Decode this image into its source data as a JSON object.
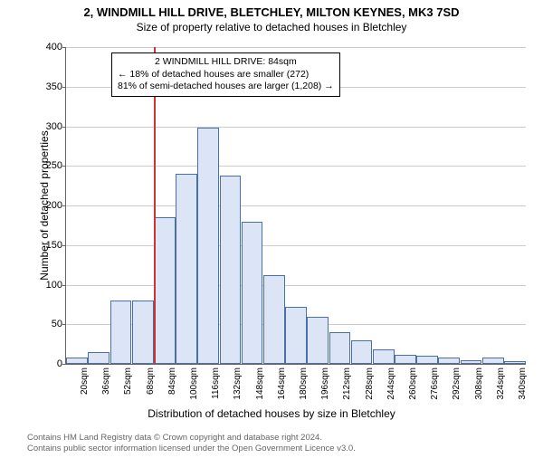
{
  "title": "2, WINDMILL HILL DRIVE, BLETCHLEY, MILTON KEYNES, MK3 7SD",
  "subtitle": "Size of property relative to detached houses in Bletchley",
  "yaxis_label": "Number of detached properties",
  "xaxis_label": "Distribution of detached houses by size in Bletchley",
  "chart": {
    "type": "histogram",
    "ylim": [
      0,
      400
    ],
    "ytick_step": 50,
    "bar_fill": "#dce5f5",
    "bar_stroke": "#4a6fa5",
    "grid_color": "#cccccc",
    "background": "#ffffff",
    "marker_color": "#cc3333",
    "marker_x": 84,
    "categories": [
      "20sqm",
      "36sqm",
      "52sqm",
      "68sqm",
      "84sqm",
      "100sqm",
      "116sqm",
      "132sqm",
      "148sqm",
      "164sqm",
      "180sqm",
      "196sqm",
      "212sqm",
      "228sqm",
      "244sqm",
      "260sqm",
      "276sqm",
      "292sqm",
      "308sqm",
      "324sqm",
      "340sqm"
    ],
    "values": [
      8,
      15,
      80,
      80,
      185,
      240,
      298,
      238,
      180,
      112,
      72,
      60,
      40,
      30,
      18,
      12,
      10,
      8,
      5,
      8,
      3
    ]
  },
  "annotation": {
    "line1": "2 WINDMILL HILL DRIVE: 84sqm",
    "line2": "← 18% of detached houses are smaller (272)",
    "line3": "81% of semi-detached houses are larger (1,208) →"
  },
  "footer": {
    "line1": "Contains HM Land Registry data © Crown copyright and database right 2024.",
    "line2": "Contains public sector information licensed under the Open Government Licence v3.0."
  }
}
